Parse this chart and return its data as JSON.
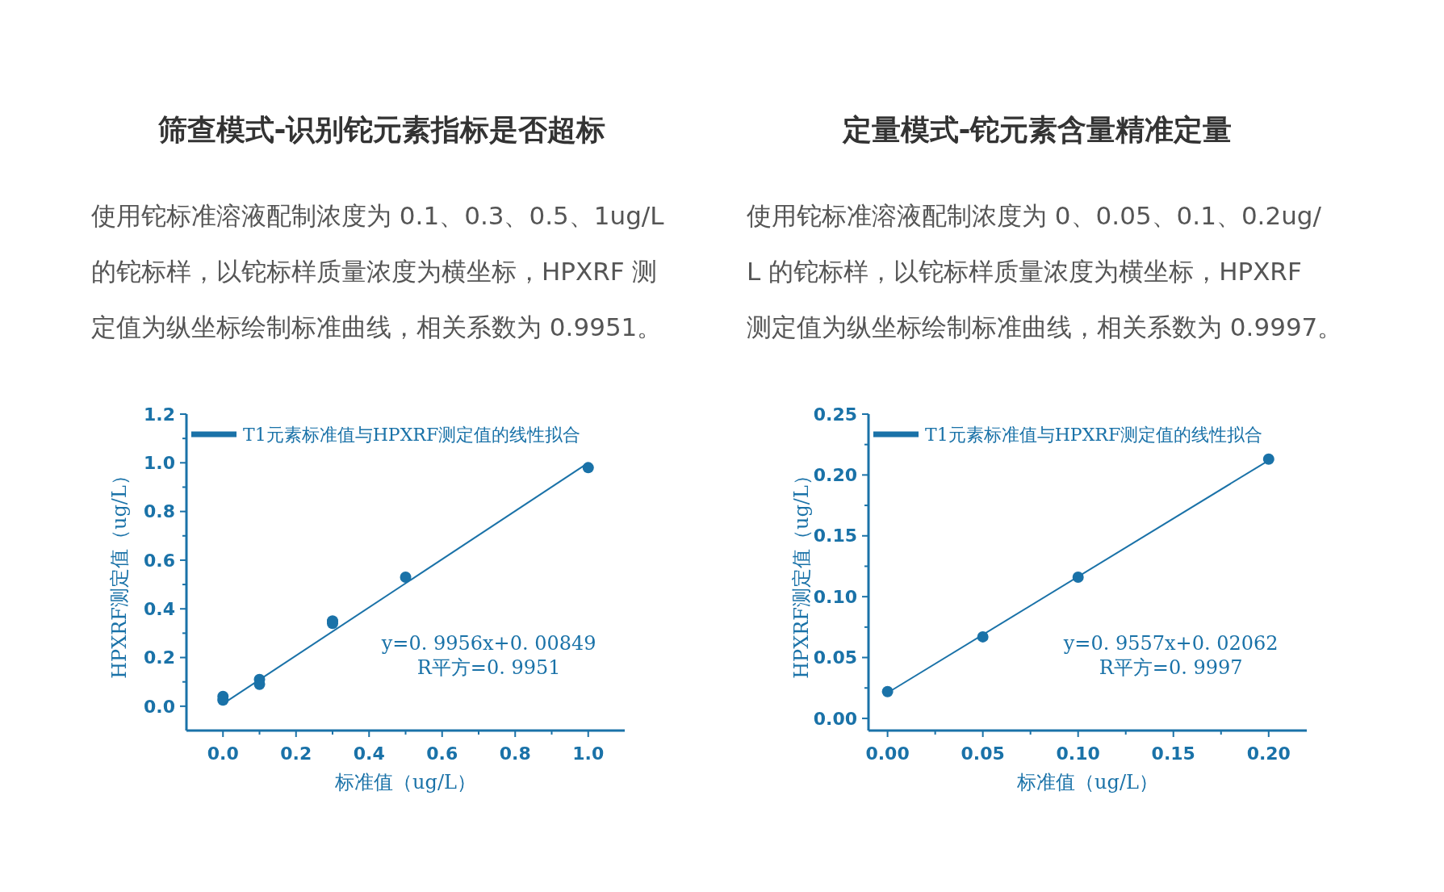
{
  "chart_data": [
    {
      "type": "scatter",
      "title": "筛查模式-识别铊元素指标是否超标",
      "subtitle": "使用铊标准溶液配制浓度为 0.1、0.3、0.5、1ug/L 的铊标样，以铊标样质量浓度为横坐标，HPXRF 测定值为纵坐标绘制标准曲线，相关系数为 0.9951。",
      "xlabel": "标准值（ug/L）",
      "ylabel": "HPXRF测定值（ug/L）",
      "xlim": [
        -0.1,
        1.1
      ],
      "ylim": [
        -0.1,
        1.2
      ],
      "xticks": [
        {
          "value": 0,
          "label": "0.0"
        },
        {
          "value": 0.1,
          "label": null
        },
        {
          "value": 0.2,
          "label": "0.2"
        },
        {
          "value": 0.3,
          "label": null
        },
        {
          "value": 0.4,
          "label": "0.4"
        },
        {
          "value": 0.5,
          "label": null
        },
        {
          "value": 0.6,
          "label": "0.6"
        },
        {
          "value": 0.7,
          "label": null
        },
        {
          "value": 0.8,
          "label": "0.8"
        },
        {
          "value": 0.9,
          "label": null
        },
        {
          "value": 1,
          "label": "1.0"
        }
      ],
      "yticks": [
        {
          "value": 0,
          "label": "0.0"
        },
        {
          "value": 0.1,
          "label": null
        },
        {
          "value": 0.2,
          "label": "0.2"
        },
        {
          "value": 0.3,
          "label": null
        },
        {
          "value": 0.4,
          "label": "0.4"
        },
        {
          "value": 0.5,
          "label": null
        },
        {
          "value": 0.6,
          "label": "0.6"
        },
        {
          "value": 0.7,
          "label": null
        },
        {
          "value": 0.8,
          "label": "0.8"
        },
        {
          "value": 0.9,
          "label": null
        },
        {
          "value": 1,
          "label": "1.0"
        },
        {
          "value": 1.1,
          "label": null
        },
        {
          "value": 1.2,
          "label": "1.2"
        }
      ],
      "legend": "top left",
      "grid": false,
      "annotations": [
        "y=0. 9956x+0. 00849",
        "R平方=0. 9951"
      ],
      "series": [
        {
          "type": "scatter",
          "marker": "circle",
          "color": "#1a72a8",
          "x": [
            0,
            0,
            0.1,
            0.1,
            0.3,
            0.3,
            0.5,
            1
          ],
          "values": [
            0.04,
            0.025,
            0.11,
            0.09,
            0.35,
            0.34,
            0.53,
            0.98
          ]
        },
        {
          "type": "line",
          "marker": "none",
          "name": "T1元素标准值与HPXRF测定值的线性拟合",
          "color": "#1a72a8",
          "x": [
            0,
            1
          ],
          "values": [
            0.01,
            1.0
          ]
        }
      ]
    },
    {
      "type": "scatter",
      "title": "定量模式-铊元素含量精准定量",
      "subtitle": "使用铊标准溶液配制浓度为 0、0.05、0.1、0.2ug/L 的铊标样，以铊标样质量浓度为横坐标，HPXRF 测定值为纵坐标绘制标准曲线，相关系数为 0.9997。",
      "xlabel": "标准值（ug/L）",
      "ylabel": "HPXRF测定值（ug/L）",
      "xlim": [
        -0.01,
        0.22
      ],
      "ylim": [
        -0.01,
        0.25
      ],
      "xticks": [
        {
          "value": 0,
          "label": "0.00"
        },
        {
          "value": 0.025,
          "label": null
        },
        {
          "value": 0.05,
          "label": "0.05"
        },
        {
          "value": 0.075,
          "label": null
        },
        {
          "value": 0.1,
          "label": "0.10"
        },
        {
          "value": 0.125,
          "label": null
        },
        {
          "value": 0.15,
          "label": "0.15"
        },
        {
          "value": 0.175,
          "label": null
        },
        {
          "value": 0.2,
          "label": "0.20"
        }
      ],
      "yticks": [
        {
          "value": 0,
          "label": "0.00"
        },
        {
          "value": 0.025,
          "label": null
        },
        {
          "value": 0.05,
          "label": "0.05"
        },
        {
          "value": 0.075,
          "label": null
        },
        {
          "value": 0.1,
          "label": "0.10"
        },
        {
          "value": 0.125,
          "label": null
        },
        {
          "value": 0.15,
          "label": "0.15"
        },
        {
          "value": 0.175,
          "label": null
        },
        {
          "value": 0.2,
          "label": "0.20"
        },
        {
          "value": 0.225,
          "label": null
        },
        {
          "value": 0.25,
          "label": "0.25"
        }
      ],
      "legend": "top left",
      "grid": false,
      "annotations": [
        "y=0. 9557x+0. 02062",
        "R平方=0. 9997"
      ],
      "series": [
        {
          "type": "scatter",
          "marker": "circle",
          "color": "#1a72a8",
          "x": [
            0,
            0.05,
            0.1,
            0.2
          ],
          "values": [
            0.022,
            0.067,
            0.116,
            0.213
          ]
        },
        {
          "type": "line",
          "marker": "none",
          "name": "T1元素标准值与HPXRF测定值的线性拟合",
          "color": "#1a72a8",
          "x": [
            0,
            0.2
          ],
          "values": [
            0.021,
            0.212
          ]
        }
      ]
    }
  ]
}
